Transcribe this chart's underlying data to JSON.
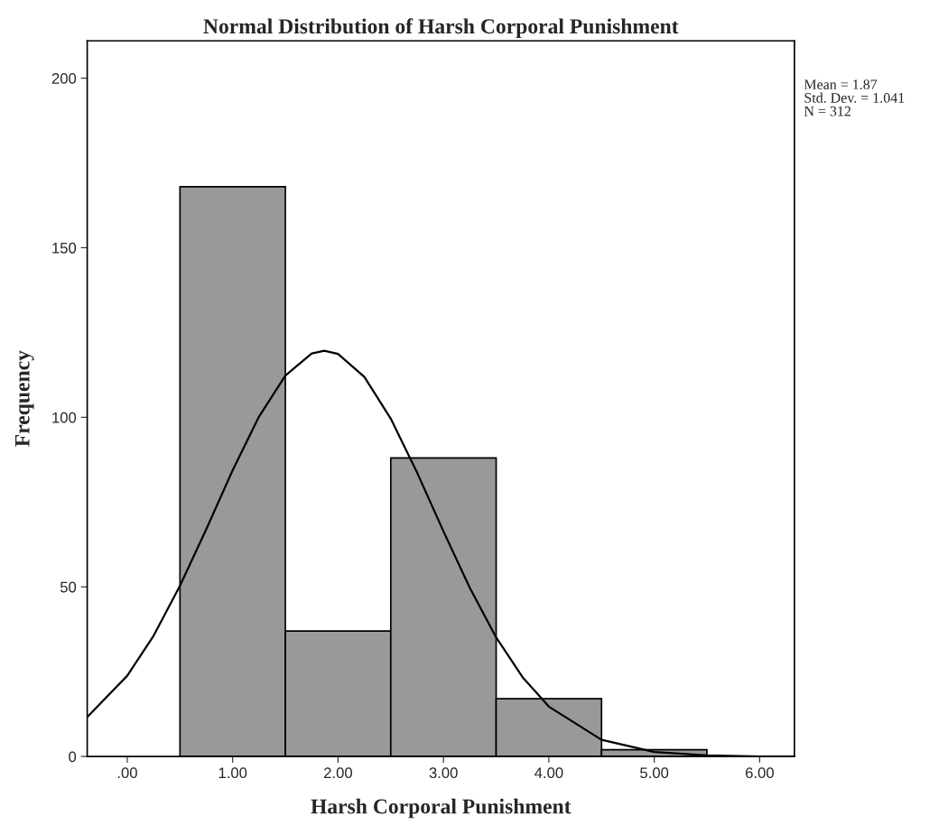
{
  "chart_data": {
    "type": "histogram",
    "title": "Normal Distribution of Harsh Corporal Punishment",
    "xlabel": "Harsh Corporal Punishment",
    "ylabel": "Frequency",
    "bins": [
      0.5,
      1.5,
      2.5,
      3.5,
      4.5,
      5.5
    ],
    "series": [
      {
        "color": "#999999",
        "values": [
          168,
          37,
          88,
          17,
          2
        ]
      },
      {
        "type": "line",
        "color": "#000000",
        "x": [
          -0.38,
          0,
          0.25,
          0.5,
          0.75,
          1.0,
          1.25,
          1.5,
          1.75,
          1.87,
          2.0,
          2.25,
          2.5,
          2.75,
          3.0,
          3.25,
          3.5,
          3.75,
          4.0,
          4.5,
          5.0,
          5.5,
          6.0,
          6.33
        ],
        "values": [
          11.6,
          23.8,
          35.6,
          50.3,
          67.0,
          84.4,
          100.2,
          112.3,
          118.8,
          119.6,
          118.7,
          111.9,
          99.6,
          83.7,
          66.4,
          49.7,
          35.1,
          23.4,
          14.7,
          4.9,
          1.3,
          0.3,
          0,
          0
        ]
      }
    ],
    "xlim": [
      -0.38,
      6.33
    ],
    "ylim": [
      0,
      211
    ],
    "xticks": [
      {
        "value": 0,
        "label": ".00"
      },
      {
        "value": 1,
        "label": "1.00"
      },
      {
        "value": 2,
        "label": "2.00"
      },
      {
        "value": 3,
        "label": "3.00"
      },
      {
        "value": 4,
        "label": "4.00"
      },
      {
        "value": 5,
        "label": "5.00"
      },
      {
        "value": 6,
        "label": "6.00"
      }
    ],
    "yticks": [
      0,
      50,
      100,
      150,
      200
    ],
    "grid": false,
    "annotations": [
      "Mean = 1.87",
      "Std. Dev. = 1.041",
      "N = 312"
    ]
  }
}
